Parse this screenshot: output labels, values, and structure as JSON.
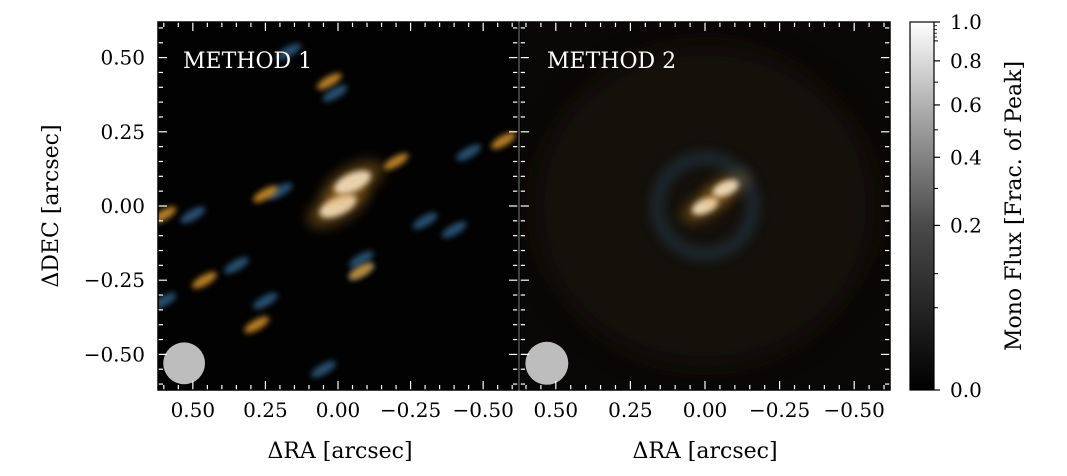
{
  "chart_data": [
    {
      "type": "heatmap",
      "title": "METHOD 1",
      "xlabel": "ΔRA [arcsec]",
      "ylabel": "ΔDEC [arcsec]",
      "xlim": [
        0.62,
        -0.62
      ],
      "ylim": [
        -0.62,
        0.62
      ],
      "x_ticks": [
        0.5,
        0.25,
        0.0,
        -0.25,
        -0.5
      ],
      "x_tick_labels": [
        "0.50",
        "0.25",
        "0.00",
        "−0.25",
        "−0.50"
      ],
      "y_ticks": [
        0.5,
        0.25,
        0.0,
        -0.25,
        -0.5
      ],
      "y_tick_labels": [
        "0.50",
        "0.25",
        "0.00",
        "−0.25",
        "−0.50"
      ],
      "beam": {
        "x": 0.53,
        "y": -0.53,
        "radius": 0.06
      },
      "features": [
        {
          "x": 0.0,
          "y": 0.0,
          "tone": "white"
        },
        {
          "x": -0.05,
          "y": 0.08,
          "tone": "white"
        },
        {
          "x": -0.2,
          "y": 0.15,
          "tone": "orange"
        },
        {
          "x": 0.2,
          "y": 0.05,
          "tone": "blue"
        },
        {
          "x": 0.25,
          "y": 0.04,
          "tone": "orange"
        },
        {
          "x": 0.03,
          "y": 0.42,
          "tone": "orange"
        },
        {
          "x": 0.01,
          "y": 0.38,
          "tone": "blue"
        },
        {
          "x": 0.17,
          "y": 0.52,
          "tone": "blue"
        },
        {
          "x": -0.45,
          "y": 0.18,
          "tone": "blue"
        },
        {
          "x": -0.57,
          "y": 0.22,
          "tone": "orange"
        },
        {
          "x": 0.5,
          "y": -0.03,
          "tone": "blue"
        },
        {
          "x": 0.6,
          "y": -0.03,
          "tone": "orange"
        },
        {
          "x": -0.3,
          "y": -0.05,
          "tone": "blue"
        },
        {
          "x": -0.4,
          "y": -0.08,
          "tone": "blue"
        },
        {
          "x": -0.08,
          "y": -0.18,
          "tone": "blue"
        },
        {
          "x": -0.08,
          "y": -0.22,
          "tone": "blue"
        },
        {
          "x": -0.08,
          "y": -0.22,
          "tone": "orange"
        },
        {
          "x": 0.35,
          "y": -0.2,
          "tone": "blue"
        },
        {
          "x": 0.46,
          "y": -0.25,
          "tone": "orange"
        },
        {
          "x": 0.6,
          "y": -0.32,
          "tone": "blue"
        },
        {
          "x": 0.25,
          "y": -0.32,
          "tone": "blue"
        },
        {
          "x": 0.28,
          "y": -0.4,
          "tone": "orange"
        },
        {
          "x": 0.05,
          "y": -0.55,
          "tone": "blue"
        }
      ]
    },
    {
      "type": "heatmap",
      "title": "METHOD 2",
      "xlabel": "ΔRA [arcsec]",
      "xlim": [
        0.62,
        -0.62
      ],
      "ylim": [
        -0.62,
        0.62
      ],
      "x_ticks": [
        0.5,
        0.25,
        0.0,
        -0.25,
        -0.5
      ],
      "x_tick_labels": [
        "0.50",
        "0.25",
        "0.00",
        "−0.25",
        "−0.50"
      ],
      "beam": {
        "x": 0.53,
        "y": -0.53,
        "radius": 0.06
      },
      "features": [
        {
          "x": 0.0,
          "y": 0.0,
          "tone": "white"
        },
        {
          "x": -0.07,
          "y": 0.06,
          "tone": "white"
        },
        {
          "x": 0.0,
          "y": 0.0,
          "tone": "ring-blue"
        }
      ]
    }
  ],
  "colorbar": {
    "label": "Mono Flux [Frac. of Peak]",
    "scale": "power-law",
    "range": [
      0.0,
      1.0
    ],
    "tick_values": [
      1.0,
      0.8,
      0.6,
      0.4,
      0.2,
      0.0
    ],
    "tick_labels": [
      "1.0",
      "0.8",
      "0.6",
      "0.4",
      "0.2",
      "0.0"
    ],
    "minor_ticks": [
      0.9,
      0.7,
      0.5,
      0.3,
      0.1,
      0.05
    ]
  },
  "colors": {
    "background": "#020202",
    "blue": "#2e5f86",
    "orange": "#d9952a",
    "white": "#ffffff",
    "beam": "#bdbdbd"
  }
}
